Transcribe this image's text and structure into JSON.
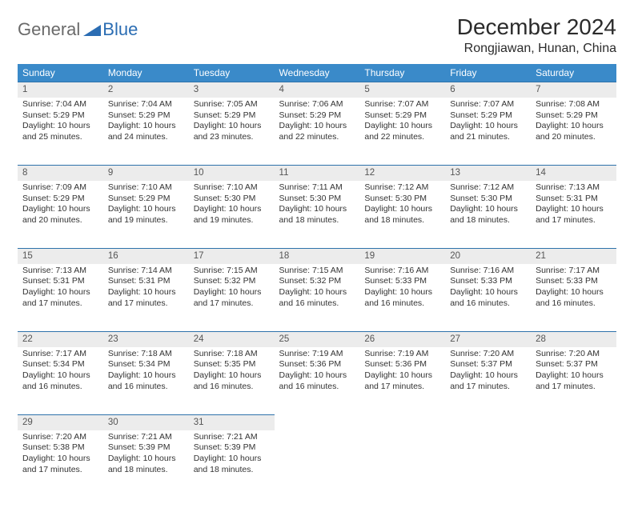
{
  "brand": {
    "part1": "General",
    "part2": "Blue",
    "triangle_color": "#2b6db3"
  },
  "title": "December 2024",
  "location": "Rongjiawan, Hunan, China",
  "colors": {
    "header_bg": "#3a8ac9",
    "header_text": "#ffffff",
    "daynum_bg": "#ececec",
    "daynum_border": "#2e72aa",
    "body_text": "#333333"
  },
  "weekdays": [
    "Sunday",
    "Monday",
    "Tuesday",
    "Wednesday",
    "Thursday",
    "Friday",
    "Saturday"
  ],
  "weeks": [
    [
      {
        "n": "1",
        "sr": "Sunrise: 7:04 AM",
        "ss": "Sunset: 5:29 PM",
        "d1": "Daylight: 10 hours",
        "d2": "and 25 minutes."
      },
      {
        "n": "2",
        "sr": "Sunrise: 7:04 AM",
        "ss": "Sunset: 5:29 PM",
        "d1": "Daylight: 10 hours",
        "d2": "and 24 minutes."
      },
      {
        "n": "3",
        "sr": "Sunrise: 7:05 AM",
        "ss": "Sunset: 5:29 PM",
        "d1": "Daylight: 10 hours",
        "d2": "and 23 minutes."
      },
      {
        "n": "4",
        "sr": "Sunrise: 7:06 AM",
        "ss": "Sunset: 5:29 PM",
        "d1": "Daylight: 10 hours",
        "d2": "and 22 minutes."
      },
      {
        "n": "5",
        "sr": "Sunrise: 7:07 AM",
        "ss": "Sunset: 5:29 PM",
        "d1": "Daylight: 10 hours",
        "d2": "and 22 minutes."
      },
      {
        "n": "6",
        "sr": "Sunrise: 7:07 AM",
        "ss": "Sunset: 5:29 PM",
        "d1": "Daylight: 10 hours",
        "d2": "and 21 minutes."
      },
      {
        "n": "7",
        "sr": "Sunrise: 7:08 AM",
        "ss": "Sunset: 5:29 PM",
        "d1": "Daylight: 10 hours",
        "d2": "and 20 minutes."
      }
    ],
    [
      {
        "n": "8",
        "sr": "Sunrise: 7:09 AM",
        "ss": "Sunset: 5:29 PM",
        "d1": "Daylight: 10 hours",
        "d2": "and 20 minutes."
      },
      {
        "n": "9",
        "sr": "Sunrise: 7:10 AM",
        "ss": "Sunset: 5:29 PM",
        "d1": "Daylight: 10 hours",
        "d2": "and 19 minutes."
      },
      {
        "n": "10",
        "sr": "Sunrise: 7:10 AM",
        "ss": "Sunset: 5:30 PM",
        "d1": "Daylight: 10 hours",
        "d2": "and 19 minutes."
      },
      {
        "n": "11",
        "sr": "Sunrise: 7:11 AM",
        "ss": "Sunset: 5:30 PM",
        "d1": "Daylight: 10 hours",
        "d2": "and 18 minutes."
      },
      {
        "n": "12",
        "sr": "Sunrise: 7:12 AM",
        "ss": "Sunset: 5:30 PM",
        "d1": "Daylight: 10 hours",
        "d2": "and 18 minutes."
      },
      {
        "n": "13",
        "sr": "Sunrise: 7:12 AM",
        "ss": "Sunset: 5:30 PM",
        "d1": "Daylight: 10 hours",
        "d2": "and 18 minutes."
      },
      {
        "n": "14",
        "sr": "Sunrise: 7:13 AM",
        "ss": "Sunset: 5:31 PM",
        "d1": "Daylight: 10 hours",
        "d2": "and 17 minutes."
      }
    ],
    [
      {
        "n": "15",
        "sr": "Sunrise: 7:13 AM",
        "ss": "Sunset: 5:31 PM",
        "d1": "Daylight: 10 hours",
        "d2": "and 17 minutes."
      },
      {
        "n": "16",
        "sr": "Sunrise: 7:14 AM",
        "ss": "Sunset: 5:31 PM",
        "d1": "Daylight: 10 hours",
        "d2": "and 17 minutes."
      },
      {
        "n": "17",
        "sr": "Sunrise: 7:15 AM",
        "ss": "Sunset: 5:32 PM",
        "d1": "Daylight: 10 hours",
        "d2": "and 17 minutes."
      },
      {
        "n": "18",
        "sr": "Sunrise: 7:15 AM",
        "ss": "Sunset: 5:32 PM",
        "d1": "Daylight: 10 hours",
        "d2": "and 16 minutes."
      },
      {
        "n": "19",
        "sr": "Sunrise: 7:16 AM",
        "ss": "Sunset: 5:33 PM",
        "d1": "Daylight: 10 hours",
        "d2": "and 16 minutes."
      },
      {
        "n": "20",
        "sr": "Sunrise: 7:16 AM",
        "ss": "Sunset: 5:33 PM",
        "d1": "Daylight: 10 hours",
        "d2": "and 16 minutes."
      },
      {
        "n": "21",
        "sr": "Sunrise: 7:17 AM",
        "ss": "Sunset: 5:33 PM",
        "d1": "Daylight: 10 hours",
        "d2": "and 16 minutes."
      }
    ],
    [
      {
        "n": "22",
        "sr": "Sunrise: 7:17 AM",
        "ss": "Sunset: 5:34 PM",
        "d1": "Daylight: 10 hours",
        "d2": "and 16 minutes."
      },
      {
        "n": "23",
        "sr": "Sunrise: 7:18 AM",
        "ss": "Sunset: 5:34 PM",
        "d1": "Daylight: 10 hours",
        "d2": "and 16 minutes."
      },
      {
        "n": "24",
        "sr": "Sunrise: 7:18 AM",
        "ss": "Sunset: 5:35 PM",
        "d1": "Daylight: 10 hours",
        "d2": "and 16 minutes."
      },
      {
        "n": "25",
        "sr": "Sunrise: 7:19 AM",
        "ss": "Sunset: 5:36 PM",
        "d1": "Daylight: 10 hours",
        "d2": "and 16 minutes."
      },
      {
        "n": "26",
        "sr": "Sunrise: 7:19 AM",
        "ss": "Sunset: 5:36 PM",
        "d1": "Daylight: 10 hours",
        "d2": "and 17 minutes."
      },
      {
        "n": "27",
        "sr": "Sunrise: 7:20 AM",
        "ss": "Sunset: 5:37 PM",
        "d1": "Daylight: 10 hours",
        "d2": "and 17 minutes."
      },
      {
        "n": "28",
        "sr": "Sunrise: 7:20 AM",
        "ss": "Sunset: 5:37 PM",
        "d1": "Daylight: 10 hours",
        "d2": "and 17 minutes."
      }
    ],
    [
      {
        "n": "29",
        "sr": "Sunrise: 7:20 AM",
        "ss": "Sunset: 5:38 PM",
        "d1": "Daylight: 10 hours",
        "d2": "and 17 minutes."
      },
      {
        "n": "30",
        "sr": "Sunrise: 7:21 AM",
        "ss": "Sunset: 5:39 PM",
        "d1": "Daylight: 10 hours",
        "d2": "and 18 minutes."
      },
      {
        "n": "31",
        "sr": "Sunrise: 7:21 AM",
        "ss": "Sunset: 5:39 PM",
        "d1": "Daylight: 10 hours",
        "d2": "and 18 minutes."
      },
      null,
      null,
      null,
      null
    ]
  ]
}
